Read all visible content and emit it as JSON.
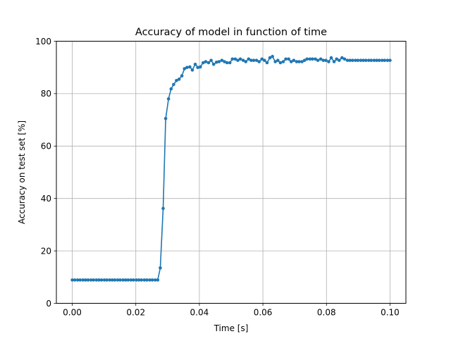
{
  "chart_data": {
    "type": "line",
    "title": "Accuracy of model in function of time",
    "xlabel": "Time [s]",
    "ylabel": "Accuracy on test set [%]",
    "xlim": [
      -0.005,
      0.105
    ],
    "ylim": [
      0,
      100
    ],
    "xticks": [
      0.0,
      0.02,
      0.04,
      0.06,
      0.08,
      0.1
    ],
    "xtick_labels": [
      "0.00",
      "0.02",
      "0.04",
      "0.06",
      "0.08",
      "0.10"
    ],
    "yticks": [
      0,
      20,
      40,
      60,
      80,
      100
    ],
    "ytick_labels": [
      "0",
      "20",
      "40",
      "60",
      "80",
      "100"
    ],
    "grid": true,
    "legend": "none",
    "series": [
      {
        "color": "#1f77b4",
        "marker": "circle",
        "x": [
          0.0,
          0.0008,
          0.0017,
          0.0025,
          0.0034,
          0.0042,
          0.005,
          0.0059,
          0.0067,
          0.0076,
          0.0084,
          0.0092,
          0.0101,
          0.0109,
          0.0118,
          0.0126,
          0.0134,
          0.0143,
          0.0151,
          0.016,
          0.0168,
          0.0176,
          0.0185,
          0.0193,
          0.0202,
          0.021,
          0.0218,
          0.0227,
          0.0235,
          0.0244,
          0.0252,
          0.0261,
          0.0269,
          0.0277,
          0.0286,
          0.0294,
          0.0303,
          0.0311,
          0.0319,
          0.0328,
          0.0336,
          0.0345,
          0.0353,
          0.0361,
          0.037,
          0.0378,
          0.0387,
          0.0395,
          0.0403,
          0.0412,
          0.042,
          0.0429,
          0.0437,
          0.0445,
          0.0454,
          0.0462,
          0.0471,
          0.0479,
          0.0487,
          0.0496,
          0.0504,
          0.0513,
          0.0521,
          0.0529,
          0.0538,
          0.0546,
          0.0555,
          0.0563,
          0.0571,
          0.058,
          0.0588,
          0.0597,
          0.0605,
          0.0613,
          0.0622,
          0.063,
          0.0639,
          0.0647,
          0.0655,
          0.0664,
          0.0672,
          0.0681,
          0.0689,
          0.0697,
          0.0706,
          0.0714,
          0.0723,
          0.0731,
          0.0739,
          0.0748,
          0.0756,
          0.0765,
          0.0773,
          0.0782,
          0.079,
          0.0798,
          0.0807,
          0.0815,
          0.0824,
          0.0832,
          0.084,
          0.0849,
          0.0857,
          0.0866,
          0.0874,
          0.0882,
          0.0891,
          0.0899,
          0.0908,
          0.0916,
          0.0924,
          0.0933,
          0.0941,
          0.095,
          0.0958,
          0.0966,
          0.0975,
          0.0983,
          0.0992,
          0.1
        ],
        "y": [
          8.9,
          8.9,
          8.9,
          8.9,
          8.9,
          8.9,
          8.9,
          8.9,
          8.9,
          8.9,
          8.9,
          8.9,
          8.9,
          8.9,
          8.9,
          8.9,
          8.9,
          8.9,
          8.9,
          8.9,
          8.9,
          8.9,
          8.9,
          8.9,
          8.9,
          8.9,
          8.9,
          8.9,
          8.9,
          8.9,
          8.9,
          8.9,
          8.9,
          13.5,
          36.2,
          70.5,
          78.0,
          81.8,
          83.5,
          85.0,
          85.5,
          86.8,
          89.5,
          90.0,
          90.2,
          89.0,
          91.2,
          90.0,
          90.2,
          91.8,
          92.2,
          91.8,
          92.7,
          91.2,
          92.0,
          92.2,
          92.7,
          92.2,
          91.8,
          91.8,
          93.2,
          93.2,
          92.7,
          93.2,
          92.7,
          92.2,
          93.2,
          92.7,
          92.7,
          92.7,
          92.2,
          93.2,
          92.7,
          91.8,
          93.7,
          94.2,
          92.2,
          92.7,
          91.8,
          92.2,
          93.2,
          93.2,
          92.2,
          92.7,
          92.2,
          92.2,
          92.2,
          92.7,
          93.2,
          93.2,
          93.2,
          93.2,
          92.7,
          93.2,
          92.7,
          92.7,
          92.2,
          93.7,
          92.2,
          93.2,
          92.7,
          93.7,
          93.2,
          92.7,
          92.7,
          92.7,
          92.7,
          92.7,
          92.7,
          92.7,
          92.7,
          92.7,
          92.7,
          92.7,
          92.7,
          92.7,
          92.7,
          92.7,
          92.7,
          92.7
        ]
      }
    ]
  }
}
